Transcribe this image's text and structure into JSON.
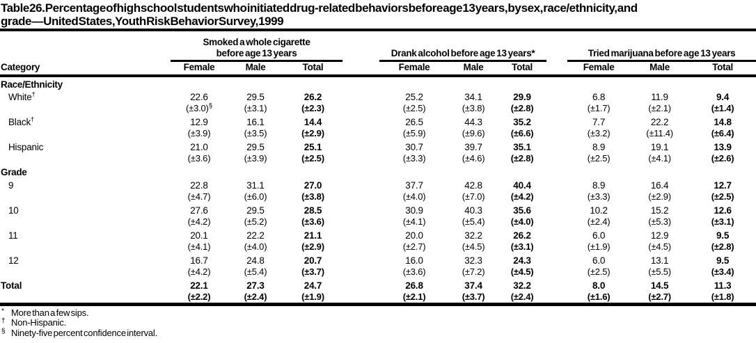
{
  "title": {
    "line1": "Table 26. Percentage of high school students who initiated drug-related behaviors before age 13 years, by sex, race/ethnicity, and",
    "line2": "grade — United States, Youth Risk Behavior Survey, 1999"
  },
  "table": {
    "category_header": "Category",
    "groups": [
      {
        "line1": "Smoked a whole cigarette",
        "line2": "before age 13 years",
        "columns": [
          "Female",
          "Male",
          "Total"
        ]
      },
      {
        "line1": "",
        "line2": "Drank alcohol before age 13 years*",
        "columns": [
          "Female",
          "Male",
          "Total"
        ]
      },
      {
        "line1": "",
        "line2": "Tried marijuana before age 13 years",
        "columns": [
          "Female",
          "Male",
          "Total"
        ]
      }
    ],
    "sections": [
      {
        "label": "Race/Ethnicity",
        "rows": [
          {
            "label": "White",
            "label_sup": "†",
            "cells": [
              {
                "v": "22.6",
                "ci": "(±3.0)",
                "ci_sup": "§"
              },
              {
                "v": "29.5",
                "ci": "(±3.1)"
              },
              {
                "v": "26.2",
                "ci": "(±2.3)"
              },
              {
                "v": "25.2",
                "ci": "(±2.5)"
              },
              {
                "v": "34.1",
                "ci": "(±3.8)"
              },
              {
                "v": "29.9",
                "ci": "(±2.8)"
              },
              {
                "v": "6.8",
                "ci": "(±1.7)"
              },
              {
                "v": "11.9",
                "ci": "(±2.1)"
              },
              {
                "v": "9.4",
                "ci": "(±1.4)"
              }
            ]
          },
          {
            "label": "Black",
            "label_sup": "†",
            "cells": [
              {
                "v": "12.9",
                "ci": "(±3.9)"
              },
              {
                "v": "16.1",
                "ci": "(±3.5)"
              },
              {
                "v": "14.4",
                "ci": "(±2.9)"
              },
              {
                "v": "26.5",
                "ci": "(±5.9)"
              },
              {
                "v": "44.3",
                "ci": "(±9.6)"
              },
              {
                "v": "35.2",
                "ci": "(±6.6)"
              },
              {
                "v": "7.7",
                "ci": "(±3.2)"
              },
              {
                "v": "22.2",
                "ci": "(±11.4)"
              },
              {
                "v": "14.8",
                "ci": "(±6.4)"
              }
            ]
          },
          {
            "label": "Hispanic",
            "label_sup": "",
            "cells": [
              {
                "v": "21.0",
                "ci": "(±3.6)"
              },
              {
                "v": "29.5",
                "ci": "(±3.9)"
              },
              {
                "v": "25.1",
                "ci": "(±2.5)"
              },
              {
                "v": "30.7",
                "ci": "(±3.3)"
              },
              {
                "v": "39.7",
                "ci": "(±4.6)"
              },
              {
                "v": "35.1",
                "ci": "(±2.8)"
              },
              {
                "v": "8.9",
                "ci": "(±2.5)"
              },
              {
                "v": "19.1",
                "ci": "(±4.1)"
              },
              {
                "v": "13.9",
                "ci": "(±2.6)"
              }
            ]
          }
        ]
      },
      {
        "label": "Grade",
        "rows": [
          {
            "label": "9",
            "label_sup": "",
            "cells": [
              {
                "v": "22.8",
                "ci": "(±4.7)"
              },
              {
                "v": "31.1",
                "ci": "(±6.0)"
              },
              {
                "v": "27.0",
                "ci": "(±3.8)"
              },
              {
                "v": "37.7",
                "ci": "(±4.0)"
              },
              {
                "v": "42.8",
                "ci": "(±7.0)"
              },
              {
                "v": "40.4",
                "ci": "(±4.2)"
              },
              {
                "v": "8.9",
                "ci": "(±3.3)"
              },
              {
                "v": "16.4",
                "ci": "(±2.9)"
              },
              {
                "v": "12.7",
                "ci": "(±2.5)"
              }
            ]
          },
          {
            "label": "10",
            "label_sup": "",
            "cells": [
              {
                "v": "27.6",
                "ci": "(±4.2)"
              },
              {
                "v": "29.5",
                "ci": "(±5.2)"
              },
              {
                "v": "28.5",
                "ci": "(±3.6)"
              },
              {
                "v": "30.9",
                "ci": "(±4.1)"
              },
              {
                "v": "40.3",
                "ci": "(±5.4)"
              },
              {
                "v": "35.6",
                "ci": "(±4.0)"
              },
              {
                "v": "10.2",
                "ci": "(±2.4)"
              },
              {
                "v": "15.2",
                "ci": "(±5.3)"
              },
              {
                "v": "12.6",
                "ci": "(±3.1)"
              }
            ]
          },
          {
            "label": "11",
            "label_sup": "",
            "cells": [
              {
                "v": "20.1",
                "ci": "(±4.1)"
              },
              {
                "v": "22.2",
                "ci": "(±4.0)"
              },
              {
                "v": "21.1",
                "ci": "(±2.9)"
              },
              {
                "v": "20.0",
                "ci": "(±2.7)"
              },
              {
                "v": "32.2",
                "ci": "(±4.5)"
              },
              {
                "v": "26.2",
                "ci": "(±3.1)"
              },
              {
                "v": "6.0",
                "ci": "(±1.9)"
              },
              {
                "v": "12.9",
                "ci": "(±4.5)"
              },
              {
                "v": "9.5",
                "ci": "(±2.8)"
              }
            ]
          },
          {
            "label": "12",
            "label_sup": "",
            "cells": [
              {
                "v": "16.7",
                "ci": "(±4.2)"
              },
              {
                "v": "24.8",
                "ci": "(±5.4)"
              },
              {
                "v": "20.7",
                "ci": "(±3.7)"
              },
              {
                "v": "16.0",
                "ci": "(±3.6)"
              },
              {
                "v": "32.3",
                "ci": "(±7.2)"
              },
              {
                "v": "24.3",
                "ci": "(±4.5)"
              },
              {
                "v": "6.0",
                "ci": "(±2.5)"
              },
              {
                "v": "13.1",
                "ci": "(±5.5)"
              },
              {
                "v": "9.5",
                "ci": "(±3.4)"
              }
            ]
          }
        ]
      }
    ],
    "total_row": {
      "label": "Total",
      "label_sup": "",
      "cells": [
        {
          "v": "22.1",
          "ci": "(±2.2)"
        },
        {
          "v": "27.3",
          "ci": "(±2.4)"
        },
        {
          "v": "24.7",
          "ci": "(±1.9)"
        },
        {
          "v": "26.8",
          "ci": "(±2.1)"
        },
        {
          "v": "37.4",
          "ci": "(±3.7)"
        },
        {
          "v": "32.2",
          "ci": "(±2.4)"
        },
        {
          "v": "8.0",
          "ci": "(±1.6)"
        },
        {
          "v": "14.5",
          "ci": "(±2.7)"
        },
        {
          "v": "11.3",
          "ci": "(±1.8)"
        }
      ]
    }
  },
  "footnotes": [
    {
      "marker": "*",
      "text": "More than a few sips."
    },
    {
      "marker": "†",
      "text": "Non-Hispanic."
    },
    {
      "marker": "§",
      "text": "Ninety-five percent confidence interval."
    }
  ]
}
